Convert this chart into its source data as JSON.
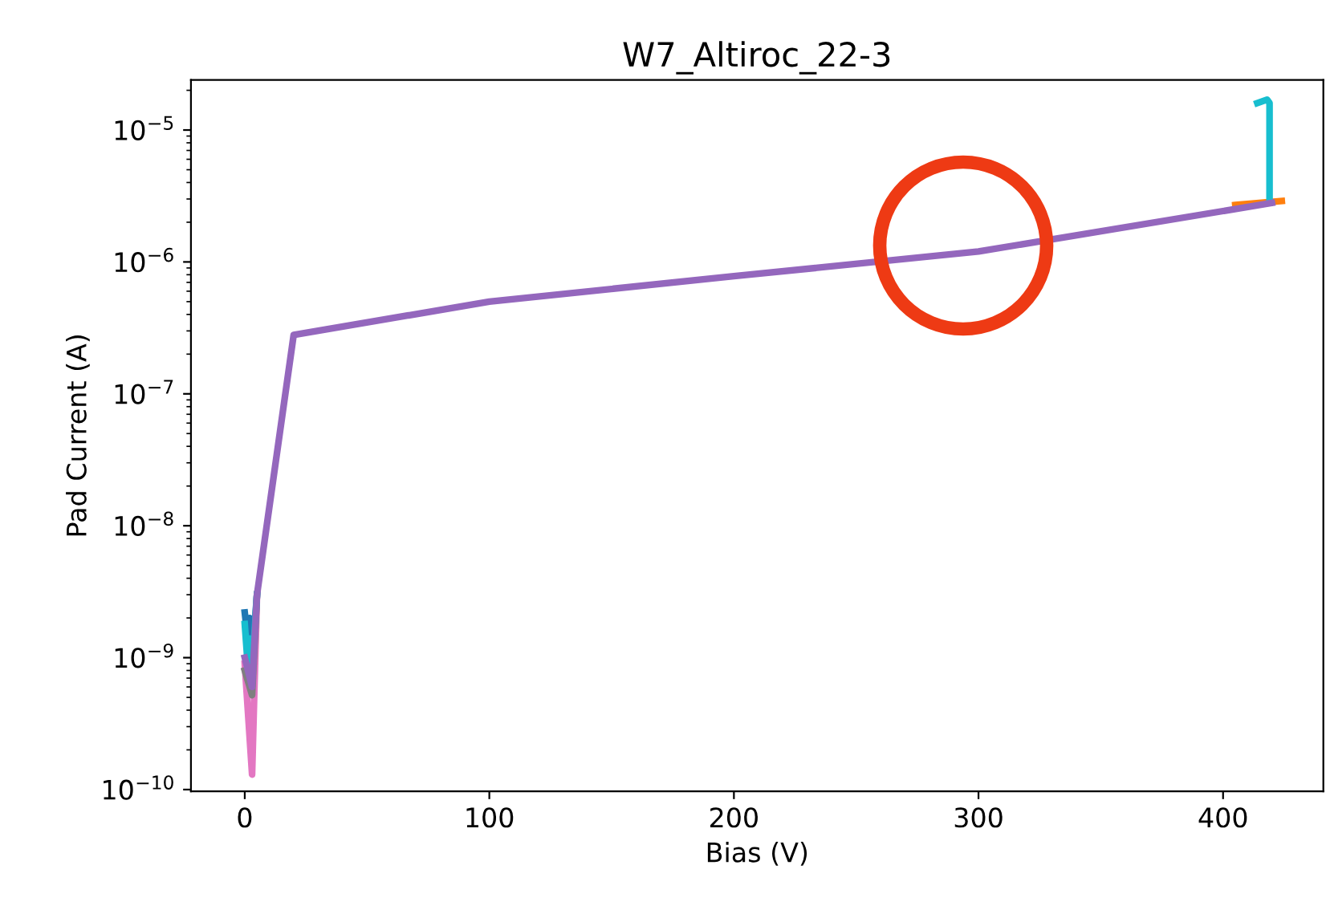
{
  "chart_data": {
    "type": "line",
    "title": "W7_Altiroc_22-3",
    "xlabel": "Bias (V)",
    "ylabel": "Pad Current (A)",
    "log": "y",
    "grid": false,
    "marker": "none",
    "line_style": "solid",
    "xlim": [
      -22,
      441
    ],
    "xticks": [
      0,
      100,
      200,
      300,
      400
    ],
    "ylim": [
      9.7e-11,
      2.4e-05
    ],
    "yticks": [
      {
        "value": 1e-10,
        "label": "10$^{−10}$"
      },
      {
        "value": 1e-09,
        "label": "10$^{−9}$"
      },
      {
        "value": 1e-08,
        "label": "10$^{−8}$"
      },
      {
        "value": 1e-07,
        "label": "10$^{−7}$"
      },
      {
        "value": 1e-06,
        "label": "10$^{−6}$"
      },
      {
        "value": 1e-05,
        "label": "10$^{−5}$"
      }
    ],
    "series": [
      {
        "color": "#1f77b4",
        "x": [
          0,
          1,
          2,
          3,
          5
        ],
        "values": [
          2.2e-09,
          1.5e-09,
          2e-09,
          1e-09,
          3e-09
        ]
      },
      {
        "color": "#ff7f0e",
        "x": [
          405,
          424
        ],
        "values": [
          2.7e-06,
          2.9e-06
        ]
      },
      {
        "color": "#e377c2",
        "x": [
          0,
          3,
          5
        ],
        "values": [
          9e-10,
          1.3e-10,
          3e-09
        ]
      },
      {
        "color": "#7f7f7f",
        "x": [
          0,
          3,
          5
        ],
        "values": [
          8e-10,
          5.2e-10,
          3e-09
        ]
      },
      {
        "color": "#17becf",
        "x": [
          0,
          1,
          2,
          3,
          5,
          200,
          419,
          419,
          418,
          414
        ],
        "values": [
          1.8e-09,
          1e-09,
          1.4e-09,
          7.8e-10,
          3e-09,
          null,
          2.8e-06,
          1.6e-05,
          1.7e-05,
          1.6e-05
        ]
      },
      {
        "color": "#9467bd",
        "x": [
          0,
          3,
          5,
          20,
          100,
          200,
          300,
          420
        ],
        "values": [
          1e-09,
          6e-10,
          3e-09,
          2.8e-07,
          5e-07,
          7.8e-07,
          1.2e-06,
          2.8e-06
        ]
      }
    ]
  }
}
